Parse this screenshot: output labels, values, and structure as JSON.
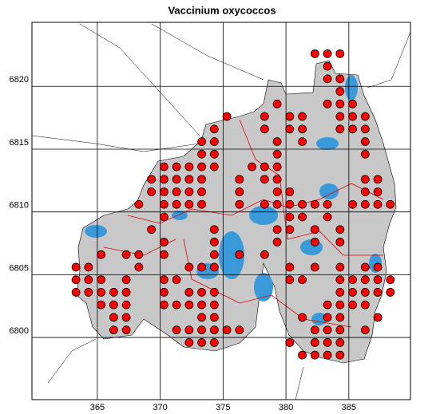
{
  "chart_data": {
    "type": "scatter",
    "title": "Vaccinium oxycoccos",
    "color": "#ff0000",
    "xlim": [
      359.8,
      389.9
    ],
    "ylim": [
      6795.05,
      6825.1
    ],
    "xticks": [
      365,
      370,
      375,
      380,
      385
    ],
    "yticks": [
      6800,
      6805,
      6810,
      6815,
      6820
    ],
    "grid": true,
    "x": [
      382.3,
      383.3,
      384.3,
      383.3,
      383.3,
      384.3,
      384.3,
      379.3,
      383.3,
      384.3,
      385.3,
      375.3,
      378.3,
      380.3,
      381.3,
      384.3,
      385.3,
      386.3,
      374.3,
      378.3,
      380.3,
      381.3,
      384.3,
      385.3,
      386.3,
      373.3,
      374.3,
      379.3,
      381.3,
      386.3,
      373.3,
      374.3,
      379.3,
      386.3,
      370.3,
      371.3,
      372.3,
      373.3,
      374.3,
      377.3,
      378.3,
      379.3,
      369.3,
      370.3,
      371.3,
      372.3,
      373.3,
      376.3,
      378.3,
      379.3,
      386.3,
      387.3,
      369.3,
      370.3,
      371.3,
      372.3,
      373.3,
      376.3,
      379.3,
      380.3,
      386.3,
      387.3,
      368.3,
      370.3,
      371.3,
      372.3,
      373.3,
      376.3,
      378.3,
      379.3,
      380.3,
      381.3,
      382.3,
      383.3,
      385.3,
      386.3,
      387.3,
      388.3,
      370.3,
      380.3,
      381.3,
      383.3,
      369.3,
      374.3,
      379.3,
      380.3,
      382.3,
      384.3,
      370.3,
      374.3,
      379.3,
      382.3,
      384.3,
      365.3,
      367.3,
      368.3,
      370.3,
      374.3,
      376.3,
      378.3,
      363.3,
      364.3,
      368.3,
      372.3,
      373.3,
      374.3,
      380.3,
      382.3,
      384.3,
      386.3,
      387.3,
      363.3,
      364.3,
      365.3,
      367.3,
      370.3,
      371.3,
      380.3,
      381.3,
      384.3,
      385.3,
      386.3,
      387.3,
      388.3,
      363.3,
      364.3,
      365.3,
      366.3,
      367.3,
      370.3,
      372.3,
      373.3,
      374.3,
      384.3,
      385.3,
      386.3,
      387.3,
      388.3,
      365.3,
      366.3,
      367.3,
      370.3,
      371.3,
      372.3,
      373.3,
      374.3,
      383.3,
      384.3,
      385.3,
      386.3,
      366.3,
      367.3,
      373.3,
      374.3,
      381.3,
      383.3,
      384.3,
      387.3,
      366.3,
      367.3,
      371.3,
      372.3,
      373.3,
      374.3,
      375.3,
      376.3,
      382.3,
      383.3,
      384.3,
      386.3,
      372.3,
      373.3,
      374.3,
      380.3,
      382.3,
      383.3,
      384.3,
      381.3,
      382.3,
      383.3,
      384.3
    ],
    "values": [
      6822.6,
      6822.6,
      6822.6,
      6821.6,
      6820.6,
      6820.6,
      6819.6,
      6818.6,
      6818.6,
      6818.6,
      6818.6,
      6817.6,
      6817.6,
      6817.6,
      6817.6,
      6817.6,
      6817.6,
      6817.6,
      6816.6,
      6816.6,
      6816.6,
      6816.6,
      6816.6,
      6816.6,
      6816.6,
      6815.6,
      6815.6,
      6815.6,
      6815.6,
      6815.6,
      6814.6,
      6814.6,
      6814.6,
      6814.6,
      6813.6,
      6813.6,
      6813.6,
      6813.6,
      6813.6,
      6813.6,
      6813.6,
      6813.6,
      6812.6,
      6812.6,
      6812.6,
      6812.6,
      6812.6,
      6812.6,
      6812.6,
      6812.6,
      6812.6,
      6812.6,
      6811.6,
      6811.6,
      6811.6,
      6811.6,
      6811.6,
      6811.6,
      6811.6,
      6811.6,
      6811.6,
      6811.6,
      6810.6,
      6810.6,
      6810.6,
      6810.6,
      6810.6,
      6810.6,
      6810.6,
      6810.6,
      6810.6,
      6810.6,
      6810.6,
      6810.6,
      6810.6,
      6810.6,
      6810.6,
      6810.6,
      6809.6,
      6809.6,
      6809.6,
      6809.6,
      6808.6,
      6808.6,
      6808.6,
      6808.6,
      6808.6,
      6808.6,
      6807.6,
      6807.6,
      6807.6,
      6807.6,
      6807.6,
      6806.6,
      6806.6,
      6806.6,
      6806.6,
      6806.6,
      6806.6,
      6806.6,
      6805.6,
      6805.6,
      6805.6,
      6805.6,
      6805.6,
      6805.6,
      6805.6,
      6805.6,
      6805.6,
      6805.6,
      6805.6,
      6804.6,
      6804.6,
      6804.6,
      6804.6,
      6804.6,
      6804.6,
      6804.6,
      6804.6,
      6804.6,
      6804.6,
      6804.6,
      6804.6,
      6804.6,
      6803.6,
      6803.6,
      6803.6,
      6803.6,
      6803.6,
      6803.6,
      6803.6,
      6803.6,
      6803.6,
      6803.6,
      6803.6,
      6803.6,
      6803.6,
      6803.6,
      6802.6,
      6802.6,
      6802.6,
      6802.6,
      6802.6,
      6802.6,
      6802.6,
      6802.6,
      6802.6,
      6802.6,
      6802.6,
      6802.6,
      6801.6,
      6801.6,
      6801.6,
      6801.6,
      6801.6,
      6801.6,
      6801.6,
      6801.6,
      6800.6,
      6800.6,
      6800.6,
      6800.6,
      6800.6,
      6800.6,
      6800.6,
      6800.6,
      6800.6,
      6800.6,
      6800.6,
      6800.6,
      6799.6,
      6799.6,
      6799.6,
      6799.6,
      6799.6,
      6799.6,
      6799.6,
      6798.6,
      6798.6,
      6798.6,
      6798.6
    ]
  }
}
